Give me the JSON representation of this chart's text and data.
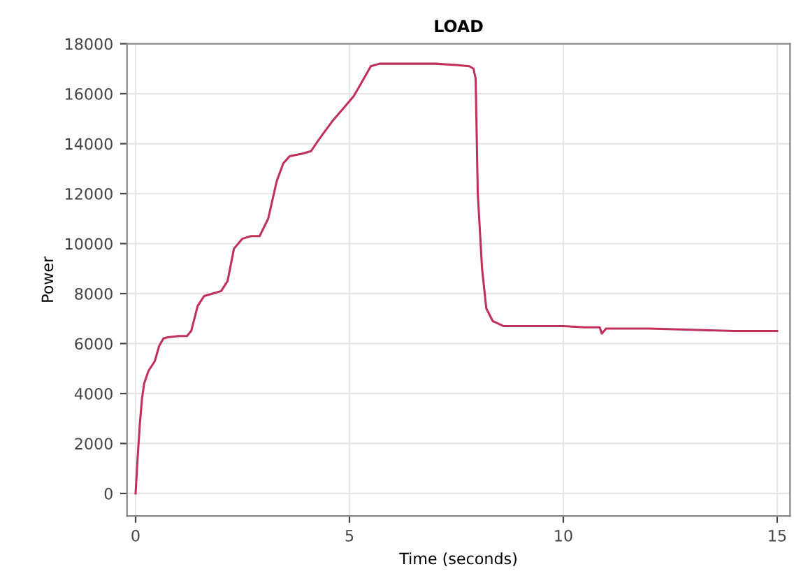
{
  "chart_data": {
    "type": "line",
    "title": "LOAD",
    "xlabel": "Time (seconds)",
    "ylabel": "Power",
    "series": [
      {
        "color": "#c0305a",
        "x": [
          0,
          0.05,
          0.1,
          0.15,
          0.2,
          0.3,
          0.45,
          0.55,
          0.65,
          0.75,
          1.0,
          1.2,
          1.3,
          1.45,
          1.6,
          1.8,
          2.0,
          2.15,
          2.3,
          2.5,
          2.7,
          2.9,
          3.1,
          3.3,
          3.45,
          3.6,
          3.9,
          4.1,
          4.3,
          4.6,
          4.9,
          5.1,
          5.3,
          5.5,
          5.7,
          6.0,
          6.5,
          7.0,
          7.5,
          7.8,
          7.9,
          7.95,
          8.0,
          8.1,
          8.2,
          8.35,
          8.6,
          9.0,
          9.5,
          10.0,
          10.5,
          10.85,
          10.9,
          11.0,
          11.5,
          12.0,
          13.0,
          14.0,
          15.0
        ],
        "values": [
          0,
          1500,
          2800,
          3800,
          4400,
          4900,
          5300,
          5900,
          6200,
          6250,
          6300,
          6300,
          6500,
          7500,
          7900,
          8000,
          8100,
          8500,
          9800,
          10200,
          10300,
          10300,
          11000,
          12500,
          13200,
          13500,
          13600,
          13700,
          14200,
          14900,
          15500,
          15900,
          16500,
          17100,
          17200,
          17200,
          17200,
          17200,
          17150,
          17100,
          17000,
          16600,
          12000,
          9000,
          7400,
          6900,
          6700,
          6700,
          6700,
          6700,
          6650,
          6650,
          6400,
          6600,
          6600,
          6600,
          6550,
          6500,
          6500
        ]
      }
    ],
    "xlim": [
      -0.2,
      15.3
    ],
    "ylim": [
      -900,
      18000
    ],
    "xticks": [
      0,
      5,
      10,
      15
    ],
    "yticks": [
      0,
      2000,
      4000,
      6000,
      8000,
      10000,
      12000,
      14000,
      16000,
      18000
    ],
    "grid": true,
    "line_style": "solid"
  }
}
